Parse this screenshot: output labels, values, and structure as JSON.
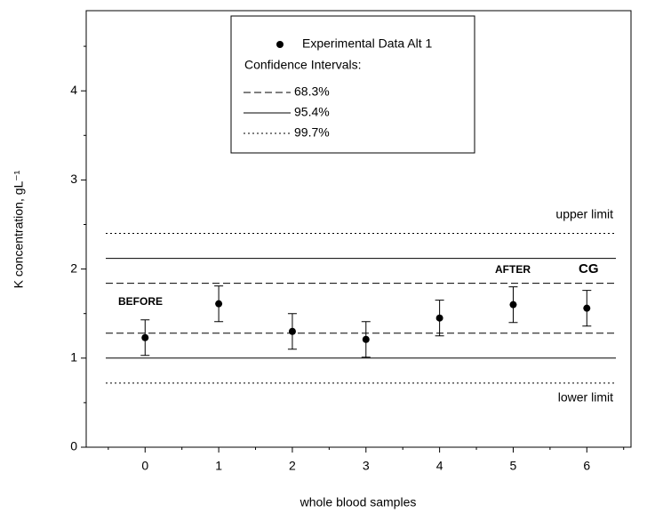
{
  "chart_data": {
    "type": "scatter",
    "xlabel": "whole blood samples",
    "ylabel": "K concentration, gL⁻¹",
    "x": [
      0,
      1,
      2,
      3,
      4,
      5,
      6
    ],
    "series": [
      {
        "name": "Experimental Data Alt 1",
        "color": "#000000",
        "values": [
          1.23,
          1.61,
          1.3,
          1.21,
          1.45,
          1.6,
          1.56
        ],
        "errors": [
          0.2,
          0.2,
          0.2,
          0.2,
          0.2,
          0.2,
          0.2
        ]
      }
    ],
    "legend_header": "Confidence Intervals:",
    "reference_lines": [
      {
        "name": "68.3%",
        "style": "dashed",
        "values": [
          1.28,
          1.84
        ]
      },
      {
        "name": "95.4%",
        "style": "solid",
        "values": [
          1.0,
          2.12
        ]
      },
      {
        "name": "99.7%",
        "style": "dotted",
        "values": [
          0.72,
          2.4
        ]
      }
    ],
    "annotations": [
      "upper limit",
      "lower limit",
      "BEFORE",
      "AFTER",
      "CG"
    ],
    "xlim": [
      -0.8,
      6.6
    ],
    "ylim": [
      0,
      4.9
    ],
    "xticks": [
      0,
      1,
      2,
      3,
      4,
      5,
      6
    ],
    "yticks": [
      0,
      1,
      2,
      3,
      4
    ],
    "xticks_minor": [
      -0.5,
      0.5,
      1.5,
      2.5,
      3.5,
      4.5,
      5.5,
      6.5
    ],
    "yticks_minor": [
      0.5,
      1.5,
      2.5,
      3.5,
      4.5
    ]
  }
}
